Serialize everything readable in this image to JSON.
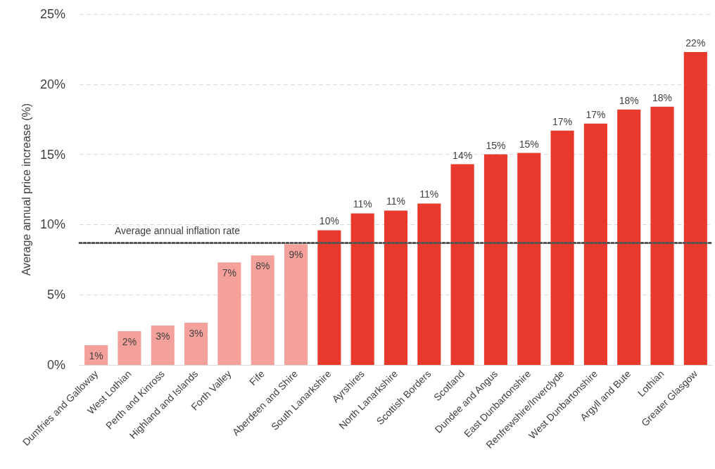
{
  "chart_data": {
    "type": "bar",
    "ylabel": "Average annual price increase (%)",
    "categories": [
      "Dumfries and Galloway",
      "West Lothian",
      "Perth and Kinross",
      "Highland and Islands",
      "Forth Valley",
      "Fife",
      "Aberdeen and Shire",
      "South Lanarkshire",
      "Ayrshires",
      "North Lanarkshire",
      "Scottish Borders",
      "Scotland",
      "Dundee and Angus",
      "East Dunbartonshire",
      "Renfrewshire/Inverclyde",
      "West Dunbartonshire",
      "Argyll and Bute",
      "Lothian",
      "Greater Glasgow"
    ],
    "values": [
      1.4,
      2.4,
      2.8,
      3.0,
      7.3,
      7.8,
      8.6,
      9.6,
      10.8,
      11.0,
      11.5,
      14.3,
      15.0,
      15.1,
      16.7,
      17.2,
      18.2,
      18.4,
      22.3
    ],
    "value_labels": [
      "1%",
      "2%",
      "3%",
      "3%",
      "7%",
      "8%",
      "9%",
      "10%",
      "11%",
      "11%",
      "11%",
      "14%",
      "15%",
      "15%",
      "17%",
      "17%",
      "18%",
      "18%",
      "22%"
    ],
    "colors": [
      "#f4a19b",
      "#f4a19b",
      "#f4a19b",
      "#f4a19b",
      "#f4a19b",
      "#f4a19b",
      "#f4a19b",
      "#e8392d",
      "#e8392d",
      "#e8392d",
      "#e8392d",
      "#e8392d",
      "#e8392d",
      "#e8392d",
      "#e8392d",
      "#e8392d",
      "#e8392d",
      "#e8392d",
      "#e8392d"
    ],
    "ylim": [
      0,
      25
    ],
    "yticks": [
      {
        "value": 0,
        "label": "0%"
      },
      {
        "value": 5,
        "label": "5%"
      },
      {
        "value": 10,
        "label": "10%"
      },
      {
        "value": 15,
        "label": "15%"
      },
      {
        "value": 20,
        "label": "20%"
      },
      {
        "value": 25,
        "label": "25%"
      }
    ],
    "grid": "y",
    "ref_lines": [
      {
        "axis": "y",
        "value": 8.7,
        "label": "Average annual inflation rate",
        "color": "#555555",
        "line_style": "dotted"
      }
    ]
  }
}
